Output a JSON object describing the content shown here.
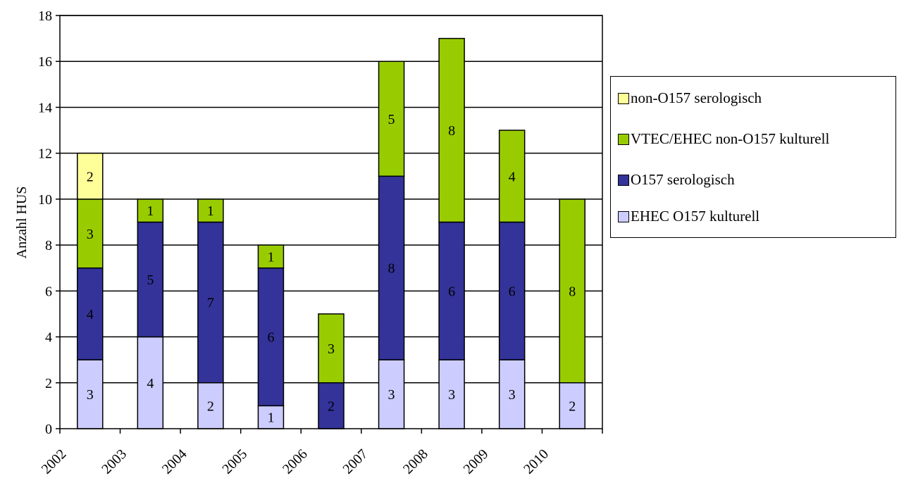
{
  "chart_data": {
    "type": "bar",
    "stacked": true,
    "ylabel": "Anzahl HUS",
    "xlabel": "",
    "ylim": [
      0,
      18
    ],
    "yticks": [
      0,
      2,
      4,
      6,
      8,
      10,
      12,
      14,
      16,
      18
    ],
    "grid": true,
    "legend_position": "right",
    "categories": [
      "2002",
      "2003",
      "2004",
      "2005",
      "2006",
      "2007",
      "2008",
      "2009",
      "2010"
    ],
    "series": [
      {
        "name": "EHEC O157 kulturell",
        "color": "#ccccff",
        "values": [
          3,
          4,
          2,
          1,
          0,
          3,
          3,
          3,
          2
        ]
      },
      {
        "name": "O157 serologisch",
        "color": "#333399",
        "values": [
          4,
          5,
          7,
          6,
          2,
          8,
          6,
          6,
          0
        ]
      },
      {
        "name": "VTEC/EHEC non-O157 kulturell",
        "color": "#99cc00",
        "values": [
          3,
          1,
          1,
          1,
          3,
          5,
          8,
          4,
          8
        ]
      },
      {
        "name": "non-O157 serologisch",
        "color": "#ffff99",
        "values": [
          2,
          0,
          0,
          0,
          0,
          0,
          0,
          0,
          0
        ]
      }
    ],
    "legend_order": [
      "non-O157 serologisch",
      "VTEC/EHEC non-O157 kulturell",
      "O157 serologisch",
      "EHEC O157 kulturell"
    ]
  }
}
